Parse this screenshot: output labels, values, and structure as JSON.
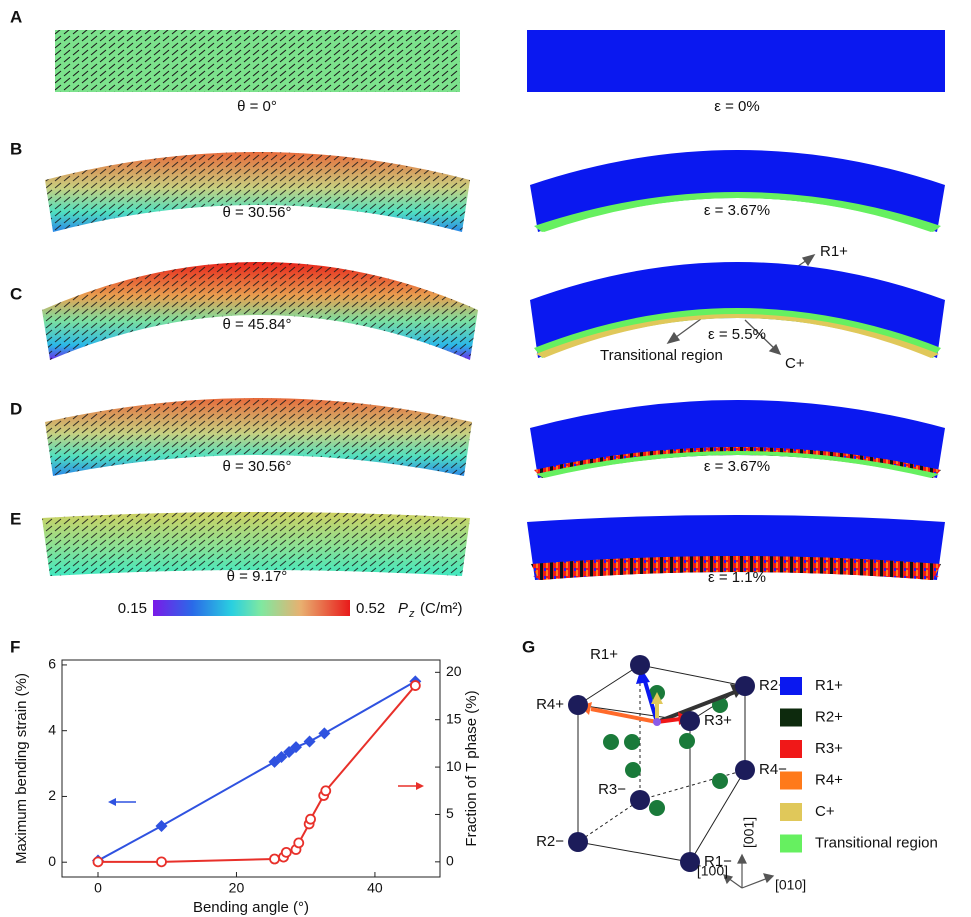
{
  "panels": [
    {
      "letter": "A",
      "theta": "θ = 0°",
      "strain": "ε = 0%"
    },
    {
      "letter": "B",
      "theta": "θ = 30.56°",
      "strain": "ε = 3.67%"
    },
    {
      "letter": "C",
      "theta": "θ = 45.84°",
      "strain": "ε = 5.5%"
    },
    {
      "letter": "D",
      "theta": "θ = 30.56°",
      "strain": "ε = 3.67%"
    },
    {
      "letter": "E",
      "theta": "θ = 9.17°",
      "strain": "ε = 1.1%"
    }
  ],
  "annotations": {
    "r1": "R1+",
    "transitional": "Transitional region",
    "c": "C+"
  },
  "colorbar": {
    "min": "0.15",
    "max": "0.52",
    "symbol": "P",
    "subscript": "z",
    "unit": "(C/m²)"
  },
  "chart_data": {
    "type": "line",
    "label": "F",
    "x_label": "Bending angle (°)",
    "y_label": "Maximum bending strain (%)",
    "y2_label": "Fraction of T phase (%)",
    "xlim": [
      -5.2,
      49.4
    ],
    "xticks": [
      0,
      20,
      40
    ],
    "ylim": [
      -0.45,
      6.15
    ],
    "yticks": [
      0,
      2,
      4,
      6
    ],
    "y2lim": [
      -1.6,
      21.3
    ],
    "y2ticks": [
      0,
      5,
      10,
      15,
      20
    ],
    "series": [
      {
        "color": "#2f52e0",
        "marker": "diamond",
        "x": [
          0,
          9.17,
          25.5,
          26.5,
          27.6,
          28.6,
          30.56,
          32.7,
          45.84
        ],
        "values": [
          0.05,
          1.1,
          3.05,
          3.2,
          3.35,
          3.5,
          3.67,
          3.92,
          5.5
        ]
      },
      {
        "color": "#e8302a",
        "marker": "open-circle",
        "axis": "y2",
        "x": [
          0,
          9.17,
          25.5,
          26.8,
          27.2,
          28.6,
          29,
          30.5,
          30.7,
          32.6,
          32.9,
          45.84
        ],
        "values": [
          0,
          0,
          0.3,
          0.5,
          1,
          1.3,
          2,
          4,
          4.5,
          7,
          7.5,
          18.6
        ]
      }
    ]
  },
  "cube": {
    "label": "G",
    "corners": [
      "R1+",
      "R2+",
      "R3+",
      "R4+",
      "R1−",
      "R2−",
      "R3−",
      "R4−"
    ],
    "axes": [
      "[100]",
      "[010]",
      "[001]"
    ]
  },
  "legend": [
    {
      "name": "R1+",
      "color": "#0a18f0"
    },
    {
      "name": "R2+",
      "color": "#0d2a0d"
    },
    {
      "name": "R3+",
      "color": "#f01818"
    },
    {
      "name": "R4+",
      "color": "#ff7a1a"
    },
    {
      "name": "C+",
      "color": "#e0c85a"
    },
    {
      "name": "Transitional region",
      "color": "#66f060"
    }
  ]
}
